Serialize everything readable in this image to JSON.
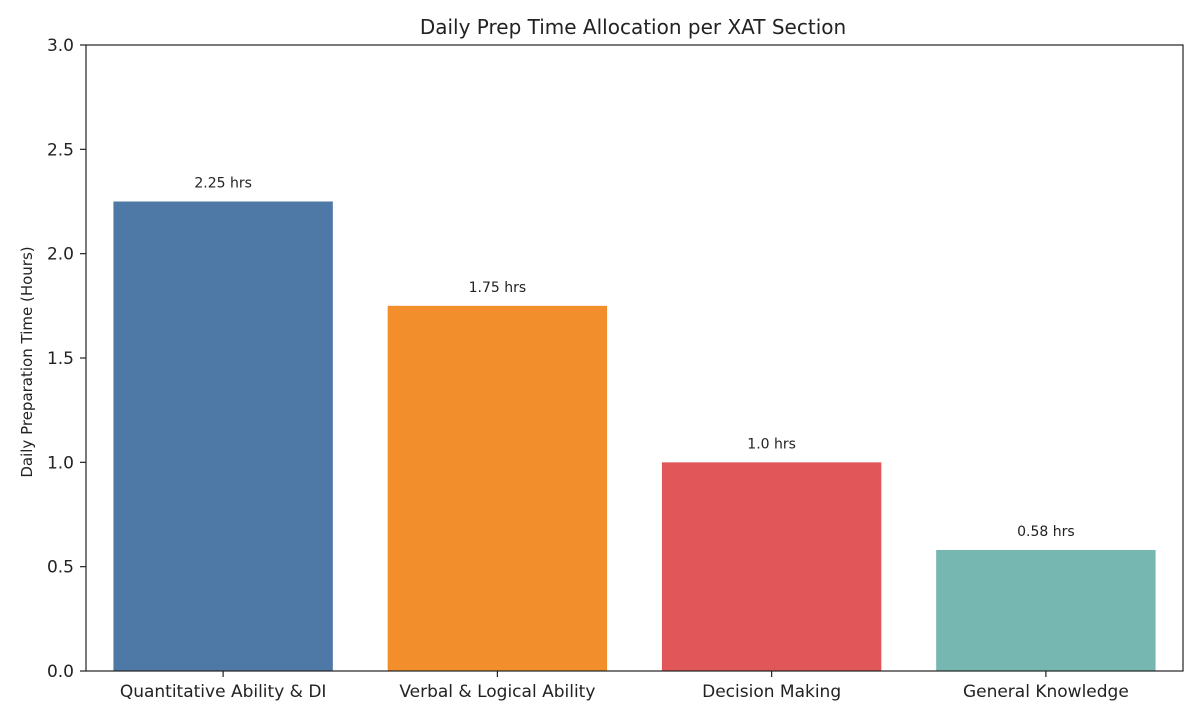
{
  "chart_data": {
    "type": "bar",
    "title": "Daily Prep Time Allocation per XAT Section",
    "xlabel": "",
    "ylabel": "Daily Preparation Time (Hours)",
    "categories": [
      "Quantitative Ability & DI",
      "Verbal & Logical Ability",
      "Decision Making",
      "General Knowledge"
    ],
    "values": [
      2.25,
      1.75,
      1.0,
      0.58
    ],
    "data_labels": [
      "2.25 hrs",
      "1.75 hrs",
      "1.0 hrs",
      "0.58 hrs"
    ],
    "colors": [
      "#4e79a7",
      "#f28e2b",
      "#e15759",
      "#76b7b2"
    ],
    "ylim": [
      0,
      3.0
    ],
    "yticks": [
      0.0,
      0.5,
      1.0,
      1.5,
      2.0,
      2.5,
      3.0
    ],
    "ytick_labels": [
      "0.0",
      "0.5",
      "1.0",
      "1.5",
      "2.0",
      "2.5",
      "3.0"
    ],
    "grid": false,
    "legend": "none"
  }
}
